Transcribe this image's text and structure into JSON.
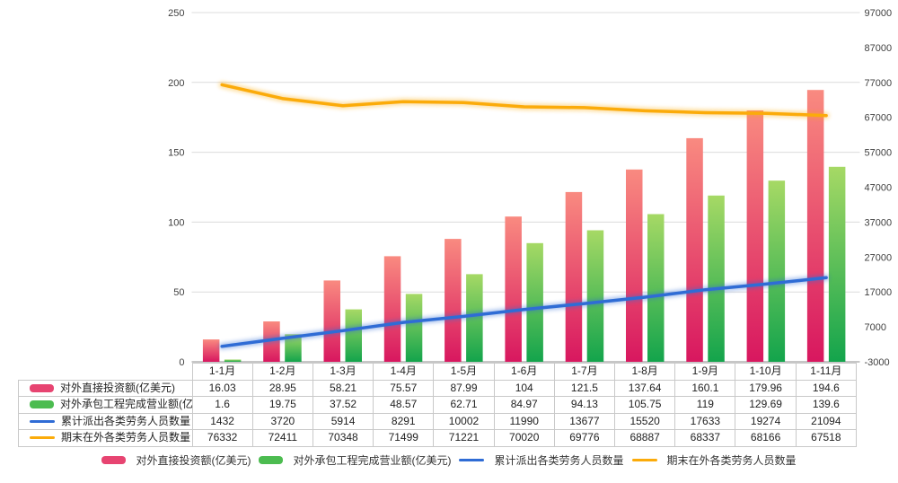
{
  "chart_data": {
    "type": "combo",
    "title": "",
    "categories": [
      "1-1月",
      "1-2月",
      "1-3月",
      "1-4月",
      "1-5月",
      "1-6月",
      "1-7月",
      "1-8月",
      "1-9月",
      "1-10月",
      "1-11月"
    ],
    "series": [
      {
        "name": "对外直接投资额(亿美元)",
        "type": "bar",
        "axis": "left",
        "color": "#E74471",
        "gradient": [
          "#F98A80",
          "#D8175F"
        ],
        "values": [
          16.03,
          28.95,
          58.21,
          75.57,
          87.99,
          104,
          121.5,
          137.64,
          160.1,
          179.96,
          194.6
        ]
      },
      {
        "name": "对外承包工程完成营业额(亿美元)",
        "type": "bar",
        "axis": "left",
        "color": "#4CBC50",
        "gradient": [
          "#A6D965",
          "#13A44C"
        ],
        "values": [
          1.6,
          19.75,
          37.52,
          48.57,
          62.71,
          84.97,
          94.13,
          105.75,
          119,
          129.69,
          139.6
        ]
      },
      {
        "name": "累计派出各类劳务人员数量",
        "type": "line",
        "axis": "right",
        "color": "#2F6CD5",
        "values": [
          1432,
          3720,
          5914,
          8291,
          10002,
          11990,
          13677,
          15520,
          17633,
          19274,
          21094
        ]
      },
      {
        "name": "期末在外各类劳务人员数量",
        "type": "line",
        "axis": "right",
        "color": "#FBAB0A",
        "values": [
          76332,
          72411,
          70348,
          71499,
          71221,
          70020,
          69776,
          68887,
          68337,
          68166,
          67518
        ]
      }
    ],
    "left_axis": {
      "min": 0,
      "max": 250,
      "step": 50,
      "ticks": [
        0,
        50,
        100,
        150,
        200,
        250
      ]
    },
    "right_axis": {
      "min": -3000,
      "max": 97000,
      "step": 10000,
      "ticks": [
        -3000,
        7000,
        17000,
        27000,
        37000,
        47000,
        57000,
        67000,
        77000,
        87000,
        97000
      ]
    },
    "grid": true,
    "legend_position": "bottom"
  },
  "colors": {
    "grid": "#dcdcdc",
    "axis_line": "#c6c6c6",
    "table_border": "#c9c9c9",
    "tick_text": "#404040",
    "text": "#333333"
  }
}
